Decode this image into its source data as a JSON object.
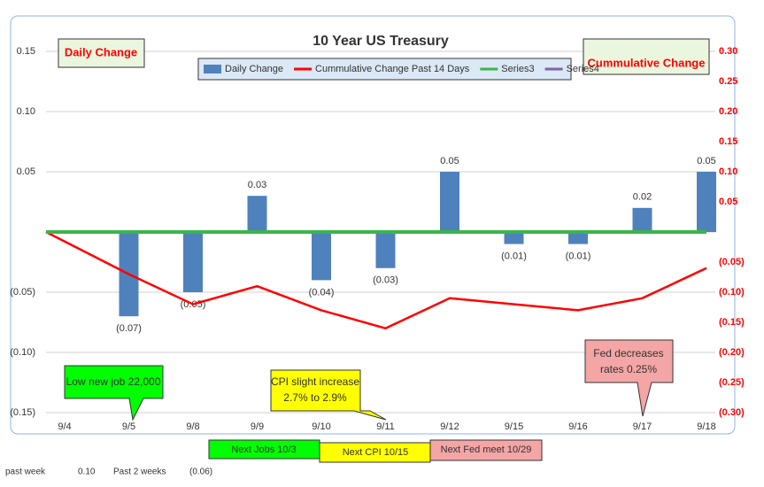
{
  "chart_data": {
    "type": "bar",
    "title": "10 Year US Treasury",
    "categories": [
      "9/4",
      "9/5",
      "9/8",
      "9/9",
      "9/10",
      "9/11",
      "9/12",
      "9/15",
      "9/16",
      "9/17",
      "9/18"
    ],
    "series": [
      {
        "name": "Daily Change",
        "color": "#4f81bd",
        "type": "bar",
        "axis": "y",
        "values": [
          null,
          -0.07,
          -0.05,
          0.03,
          -0.04,
          -0.03,
          0.05,
          -0.01,
          -0.01,
          0.02,
          0.05
        ],
        "value_labels": [
          null,
          "(0.07)",
          "(0.05)",
          "0.03",
          "(0.04)",
          "(0.03)",
          "0.05",
          "(0.01)",
          "(0.01)",
          "0.02",
          "0.05"
        ]
      },
      {
        "name": "Cummulative Change Past 14 Days",
        "color": "#ff0000",
        "type": "line",
        "axis": "y2",
        "values": [
          0,
          -0.07,
          -0.12,
          -0.09,
          -0.13,
          -0.16,
          -0.11,
          -0.12,
          -0.13,
          -0.11,
          -0.06
        ]
      },
      {
        "name": "Series3",
        "color": "#3cb54a",
        "type": "line",
        "axis": "y",
        "values": [
          0,
          0,
          0,
          0,
          0,
          0,
          0,
          0,
          0,
          0,
          0
        ]
      },
      {
        "name": "Series4",
        "color": "#8064a2",
        "type": "line",
        "axis": "y",
        "values": [
          null,
          null,
          null,
          null,
          null,
          null,
          null,
          null,
          null,
          null,
          null
        ]
      }
    ],
    "ylim": [
      -0.15,
      0.15
    ],
    "yticks": [
      0.15,
      {
        "value": 0.1,
        "label": "0.10"
      },
      0.05,
      {
        "value": -0.05,
        "label": "(0.05)"
      },
      {
        "value": -0.1,
        "label": "(0.10)"
      },
      {
        "value": -0.15,
        "label": "(0.15)"
      }
    ],
    "y2lim": [
      -0.3,
      0.3
    ],
    "y2ticks": [
      {
        "value": 0.3,
        "label": "0.30"
      },
      0.25,
      {
        "value": 0.2,
        "label": "0.20"
      },
      0.15,
      {
        "value": 0.1,
        "label": "0.10"
      },
      0.05,
      {
        "value": -0.05,
        "label": "(0.05)"
      },
      {
        "value": -0.1,
        "label": "(0.10)"
      },
      {
        "value": -0.15,
        "label": "(0.15)"
      },
      {
        "value": -0.2,
        "label": "(0.20)"
      },
      {
        "value": -0.25,
        "label": "(0.25)"
      },
      {
        "value": -0.3,
        "label": "(0.30)"
      }
    ],
    "grid": true,
    "legend": "top",
    "annotations": {
      "left_axis": "Daily Change",
      "right_axis": "Cummulative Change",
      "jobs": "Low new job 22,000",
      "cpi": [
        "CPI slight increase",
        "2.7% to 2.9%"
      ],
      "fed": [
        "Fed decreases",
        "rates 0.25%"
      ]
    }
  },
  "upcoming": [
    "Next Jobs 10/3",
    "Next CPI 10/15",
    "Next Fed meet 10/29"
  ],
  "footer": {
    "past_week_label": "past week",
    "past_week": "0.10",
    "past_2_weeks_label": "Past 2 weeks",
    "past_2_weeks": "(0.06)"
  }
}
